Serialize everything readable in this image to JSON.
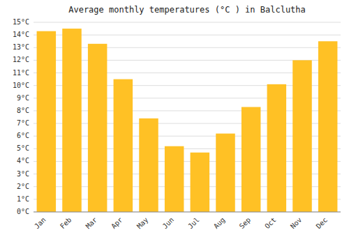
{
  "chart_data": {
    "type": "bar",
    "title": "Average monthly temperatures (°C ) in Balclutha",
    "categories": [
      "Jan",
      "Feb",
      "Mar",
      "Apr",
      "May",
      "Jun",
      "Jul",
      "Aug",
      "Sep",
      "Oct",
      "Nov",
      "Dec"
    ],
    "values": [
      14.3,
      14.5,
      13.3,
      10.5,
      7.4,
      5.2,
      4.7,
      6.2,
      8.3,
      10.1,
      12.0,
      13.5
    ],
    "color": "#FFC125",
    "ylim": [
      0,
      15
    ],
    "yticks": [
      {
        "value": 0,
        "label": "0°C"
      },
      {
        "value": 1,
        "label": "1°C"
      },
      {
        "value": 2,
        "label": "2°C"
      },
      {
        "value": 3,
        "label": "3°C"
      },
      {
        "value": 4,
        "label": "4°C"
      },
      {
        "value": 5,
        "label": "5°C"
      },
      {
        "value": 6,
        "label": "6°C"
      },
      {
        "value": 7,
        "label": "7°C"
      },
      {
        "value": 8,
        "label": "8°C"
      },
      {
        "value": 9,
        "label": "9°C"
      },
      {
        "value": 10,
        "label": "10°C"
      },
      {
        "value": 11,
        "label": "11°C"
      },
      {
        "value": 12,
        "label": "12°C"
      },
      {
        "value": 13,
        "label": "13°C"
      },
      {
        "value": 14,
        "label": "14°C"
      },
      {
        "value": 15,
        "label": "15°C"
      }
    ],
    "grid": true
  }
}
